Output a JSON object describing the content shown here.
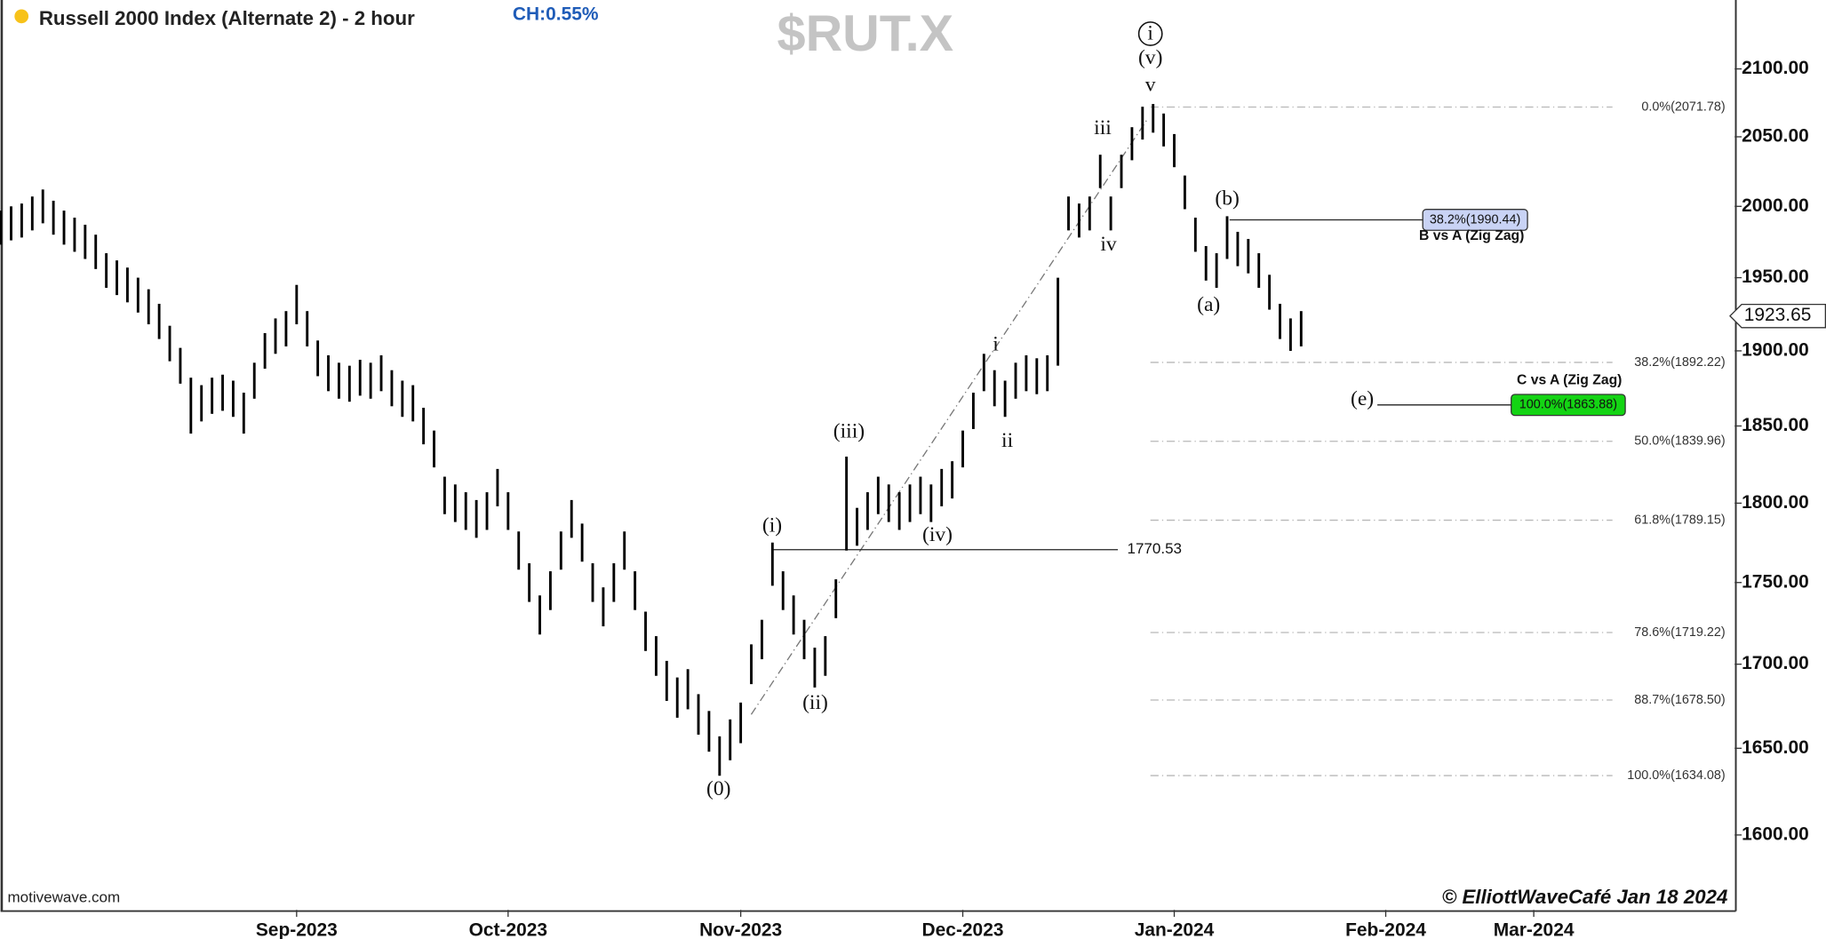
{
  "chart_data": {
    "type": "ohlc",
    "title": "Russell 2000 Index (Alternate 2) - 2 hour",
    "change": "CH:0.55%",
    "symbol": "$RUT.X",
    "log_scale": true,
    "x": [
      -28,
      -27,
      -26,
      -25,
      -24,
      -23,
      -22,
      -21,
      -20,
      -19,
      -18,
      -17,
      -16,
      -15,
      -14,
      -13,
      -12,
      -11,
      -10,
      -9,
      -8,
      -7,
      -6,
      -5,
      -4,
      -3,
      -2,
      -1,
      0,
      1,
      2,
      3,
      4,
      5,
      6,
      7,
      8,
      9,
      10,
      11,
      12,
      13,
      14,
      15,
      16,
      17,
      18,
      19,
      20,
      21,
      22,
      23,
      24,
      25,
      26,
      27,
      28,
      29,
      30,
      31,
      32,
      33,
      34,
      35,
      36,
      37,
      38,
      39,
      40,
      41,
      42,
      43,
      44,
      45,
      46,
      47,
      48,
      49,
      50,
      51,
      52,
      53,
      54,
      55,
      56,
      57,
      58,
      59,
      60,
      61,
      62,
      63,
      64,
      65,
      66,
      67,
      68,
      69,
      70,
      71,
      72,
      73,
      74,
      75,
      76,
      77,
      78,
      79,
      80,
      81,
      82,
      83,
      84,
      85,
      86,
      87,
      88,
      89,
      90,
      91,
      92,
      93,
      94,
      95
    ],
    "high": [
      1997,
      2000,
      2002,
      2007,
      2012,
      2004,
      1997,
      1992,
      1987,
      1980,
      1967,
      1962,
      1957,
      1950,
      1942,
      1932,
      1917,
      1902,
      1882,
      1877,
      1882,
      1884,
      1880,
      1872,
      1892,
      1912,
      1922,
      1927,
      1945,
      1927,
      1907,
      1897,
      1892,
      1890,
      1894,
      1892,
      1897,
      1887,
      1880,
      1877,
      1862,
      1847,
      1817,
      1812,
      1807,
      1802,
      1807,
      1822,
      1807,
      1782,
      1762,
      1742,
      1757,
      1782,
      1802,
      1787,
      1762,
      1747,
      1762,
      1782,
      1757,
      1732,
      1717,
      1702,
      1692,
      1697,
      1682,
      1672,
      1657,
      1667,
      1677,
      1712,
      1727,
      1775,
      1757,
      1742,
      1727,
      1710,
      1717,
      1752,
      1830,
      1797,
      1807,
      1817,
      1812,
      1807,
      1812,
      1817,
      1812,
      1822,
      1827,
      1847,
      1872,
      1898,
      1887,
      1880,
      1892,
      1897,
      1895,
      1897,
      1950,
      2007,
      2002,
      2007,
      2037,
      2007,
      2037,
      2057,
      2072,
      2074,
      2067,
      2052,
      2022,
      1992,
      1972,
      1967,
      1993,
      1982,
      1977,
      1967,
      1952,
      1932,
      1922,
      1927
    ],
    "low": [
      1973,
      1976,
      1978,
      1983,
      1988,
      1980,
      1973,
      1968,
      1963,
      1956,
      1943,
      1938,
      1933,
      1926,
      1918,
      1908,
      1893,
      1878,
      1845,
      1853,
      1858,
      1860,
      1856,
      1845,
      1868,
      1888,
      1898,
      1903,
      1918,
      1903,
      1883,
      1873,
      1868,
      1866,
      1870,
      1868,
      1873,
      1863,
      1856,
      1853,
      1838,
      1823,
      1793,
      1788,
      1783,
      1778,
      1783,
      1798,
      1783,
      1758,
      1738,
      1718,
      1733,
      1758,
      1778,
      1763,
      1738,
      1723,
      1738,
      1758,
      1733,
      1708,
      1693,
      1678,
      1668,
      1673,
      1658,
      1648,
      1634,
      1643,
      1653,
      1688,
      1703,
      1748,
      1733,
      1718,
      1703,
      1686,
      1693,
      1728,
      1770,
      1773,
      1783,
      1793,
      1788,
      1783,
      1788,
      1793,
      1788,
      1798,
      1803,
      1823,
      1848,
      1873,
      1863,
      1856,
      1868,
      1873,
      1871,
      1873,
      1890,
      1983,
      1978,
      1983,
      2013,
      1983,
      2013,
      2033,
      2048,
      2053,
      2043,
      2028,
      1998,
      1968,
      1948,
      1943,
      1963,
      1958,
      1953,
      1943,
      1928,
      1908,
      1900,
      1903
    ],
    "xlim": [
      -28,
      136
    ],
    "xticks": [
      {
        "value": 0,
        "label": "Sep-2023"
      },
      {
        "value": 20,
        "label": "Oct-2023"
      },
      {
        "value": 42,
        "label": "Nov-2023"
      },
      {
        "value": 63,
        "label": "Dec-2023"
      },
      {
        "value": 83,
        "label": "Jan-2024"
      },
      {
        "value": 103,
        "label": "Feb-2024"
      },
      {
        "value": 117,
        "label": "Mar-2024"
      }
    ],
    "ylim": [
      1558,
      2152
    ],
    "yticks": [
      {
        "value": 1600,
        "label": "1600.00"
      },
      {
        "value": 1650,
        "label": "1650.00"
      },
      {
        "value": 1700,
        "label": "1700.00"
      },
      {
        "value": 1750,
        "label": "1750.00"
      },
      {
        "value": 1800,
        "label": "1800.00"
      },
      {
        "value": 1850,
        "label": "1850.00"
      },
      {
        "value": 1900,
        "label": "1900.00"
      },
      {
        "value": 1950,
        "label": "1950.00"
      },
      {
        "value": 2000,
        "label": "2000.00"
      },
      {
        "value": 2050,
        "label": "2050.00"
      },
      {
        "value": 2100,
        "label": "2100.00"
      }
    ],
    "last_price": 1923.65,
    "fib_levels": [
      {
        "value": 2071.78,
        "label": "0.0%(2071.78)"
      },
      {
        "value": 1892.22,
        "label": "38.2%(1892.22)"
      },
      {
        "value": 1839.96,
        "label": "50.0%(1839.96)"
      },
      {
        "value": 1789.15,
        "label": "61.8%(1789.15)"
      },
      {
        "value": 1719.22,
        "label": "78.6%(1719.22)"
      },
      {
        "value": 1678.5,
        "label": "88.7%(1678.50)"
      },
      {
        "value": 1634.08,
        "label": "100.0%(1634.08)"
      }
    ],
    "level_line": 1770.53,
    "projections": [
      {
        "value": 1990.44,
        "label": "38.2%(1990.44)",
        "name": "B vs A (Zig Zag)",
        "color": "#c9d3f5"
      },
      {
        "value": 1863.88,
        "label": "100.0%(1863.88)",
        "name": "C vs A (Zig Zag)",
        "color": "#14d414"
      }
    ],
    "wave_labels": [
      "i",
      "(v)",
      "v",
      "iii",
      "iv",
      "(b)",
      "(a)",
      "i",
      "ii",
      "(iii)",
      "(i)",
      "(iv)",
      "(ii)",
      "(0)",
      "(e)"
    ],
    "source": "motivewave.com",
    "copyright": "© ElliottWaveCafé Jan 18 2024"
  }
}
